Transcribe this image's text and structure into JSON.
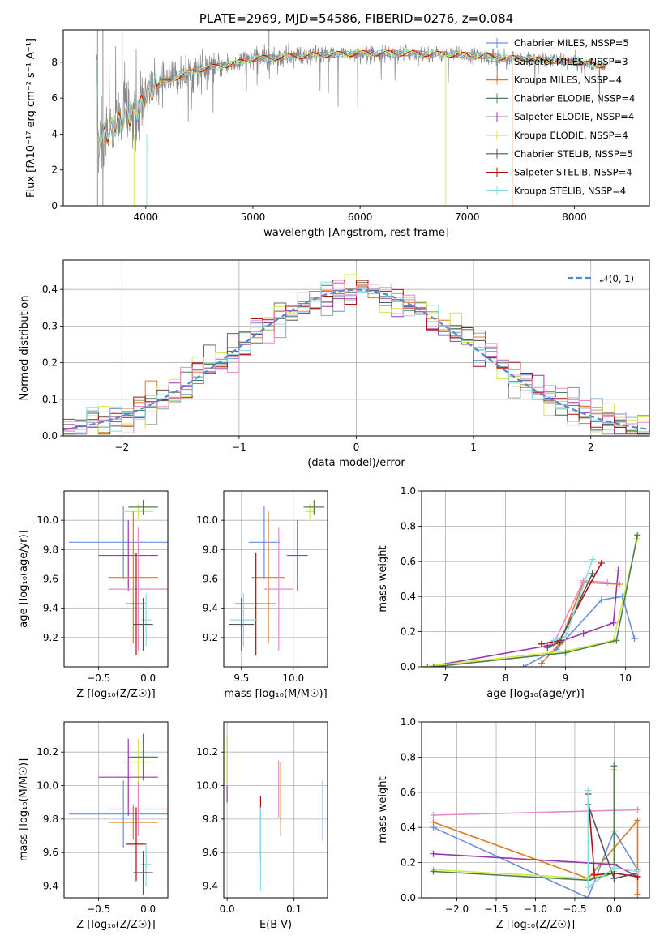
{
  "colors": {
    "chabrier_miles": "#6a8fdc",
    "salpeter_miles": "#a0a0a0",
    "kroupa_miles": "#e07a1f",
    "chabrier_elodie": "#4f7f4f",
    "salpeter_elodie": "#9b35b0",
    "kroupa_elodie": "#d6e64a",
    "chabrier_stelib": "#555555",
    "salpeter_stelib": "#b01010",
    "kroupa_stelib": "#87dde6",
    "pink": "#e68ac8",
    "spectrum": "#888888",
    "normal": "#5588cc"
  },
  "chart_data": [
    {
      "id": "spectrum",
      "type": "line",
      "title": "PLATE=2969, MJD=54586, FIBERID=0276, z=0.084",
      "xlabel": "wavelength [Angstrom, rest frame]",
      "ylabel": "Flux [fλ10⁻¹⁷ erg cm⁻² s⁻¹ A⁻¹]",
      "xlim": [
        3230,
        8700
      ],
      "ylim": [
        0,
        9.8
      ],
      "xticks": [
        "4000",
        "5000",
        "6000",
        "7000",
        "8000"
      ],
      "yticks": [
        "0",
        "2",
        "4",
        "6",
        "8"
      ],
      "legend_position": "right",
      "legend": [
        "Chabrier MILES, NSSP=5",
        "Salpeter MILES, NSSP=3",
        "Kroupa MILES, NSSP=4",
        "Chabrier ELODIE, NSSP=4",
        "Salpeter ELODIE, NSSP=4",
        "Kroupa ELODIE, NSSP=4",
        "Chabrier STELIB, NSSP=5",
        "Salpeter STELIB, NSSP=4",
        "Kroupa STELIB, NSSP=4"
      ],
      "continuum": [
        [
          3550,
          3.8
        ],
        [
          3650,
          4.1
        ],
        [
          3800,
          4.9
        ],
        [
          3950,
          5.4
        ],
        [
          4000,
          6.2
        ],
        [
          4100,
          6.7
        ],
        [
          4300,
          7.2
        ],
        [
          4500,
          7.6
        ],
        [
          4800,
          7.9
        ],
        [
          5000,
          8.2
        ],
        [
          5300,
          8.3
        ],
        [
          5600,
          8.4
        ],
        [
          6000,
          8.5
        ],
        [
          6500,
          8.5
        ],
        [
          7000,
          8.4
        ],
        [
          7500,
          8.2
        ],
        [
          8000,
          8.0
        ],
        [
          8300,
          7.8
        ]
      ]
    },
    {
      "id": "residuals",
      "type": "step",
      "xlabel": "(data-model)/error",
      "ylabel": "Normed distribution",
      "xlim": [
        -2.5,
        2.5
      ],
      "ylim": [
        0,
        0.48
      ],
      "xticks": [
        "−2",
        "−1",
        "0",
        "1",
        "2"
      ],
      "yticks": [
        "0.0",
        "0.1",
        "0.2",
        "0.3",
        "0.4"
      ],
      "grid": true,
      "legend": [
        "𝒩(0, 1)"
      ],
      "legend_position": "top-right"
    },
    {
      "id": "age_vs_Z",
      "type": "errorbar",
      "xlabel": "Z [log₁₀(Z/Z☉)]",
      "ylabel": "age [log₁₀(age/yr)]",
      "xlim": [
        -0.85,
        0.2
      ],
      "ylim": [
        9.0,
        10.2
      ],
      "xticks": [
        "−0.5",
        "0.0"
      ],
      "yticks": [
        "9.2",
        "9.4",
        "9.6",
        "9.8",
        "10.0"
      ],
      "grid": true,
      "points": [
        {
          "x": -0.25,
          "y": 9.85,
          "xerr": 0.55,
          "yerr": 0.25,
          "c": "chabrier_miles"
        },
        {
          "x": -0.1,
          "y": 10.06,
          "xerr": 0.15,
          "yerr": 0.05,
          "c": "kroupa_elodie"
        },
        {
          "x": -0.05,
          "y": 10.09,
          "xerr": 0.15,
          "yerr": 0.05,
          "c": "chabrier_elodie"
        },
        {
          "x": -0.2,
          "y": 9.76,
          "xerr": 0.3,
          "yerr": 0.24,
          "c": "salpeter_elodie"
        },
        {
          "x": -0.15,
          "y": 9.61,
          "xerr": 0.25,
          "yerr": 0.45,
          "c": "kroupa_miles"
        },
        {
          "x": -0.1,
          "y": 9.53,
          "xerr": 0.3,
          "yerr": 0.42,
          "c": "pink"
        },
        {
          "x": -0.12,
          "y": 9.43,
          "xerr": 0.1,
          "yerr": 0.35,
          "c": "salpeter_stelib"
        },
        {
          "x": -0.02,
          "y": 9.32,
          "xerr": 0.05,
          "yerr": 0.18,
          "c": "kroupa_stelib"
        },
        {
          "x": -0.05,
          "y": 9.29,
          "xerr": 0.1,
          "yerr": 0.18,
          "c": "chabrier_stelib"
        }
      ]
    },
    {
      "id": "age_vs_mass",
      "type": "errorbar",
      "xlabel": "mass [log₁₀(M/M☉)]",
      "ylabel": "",
      "xlim": [
        9.33,
        10.33
      ],
      "ylim": [
        9.0,
        10.2
      ],
      "xticks": [
        "9.5",
        "10.0"
      ],
      "yticks": [
        "9.2",
        "9.4",
        "9.6",
        "9.8",
        "10.0"
      ],
      "grid": true,
      "points": [
        {
          "x": 9.72,
          "y": 9.85,
          "xerr": 0.15,
          "yerr": 0.25,
          "c": "chabrier_miles"
        },
        {
          "x": 10.16,
          "y": 10.06,
          "xerr": 0.04,
          "yerr": 0.05,
          "c": "kroupa_elodie"
        },
        {
          "x": 10.2,
          "y": 10.09,
          "xerr": 0.1,
          "yerr": 0.05,
          "c": "chabrier_elodie"
        },
        {
          "x": 10.04,
          "y": 9.76,
          "xerr": 0.1,
          "yerr": 0.24,
          "c": "salpeter_elodie"
        },
        {
          "x": 9.76,
          "y": 9.61,
          "xerr": 0.16,
          "yerr": 0.45,
          "c": "kroupa_miles"
        },
        {
          "x": 9.86,
          "y": 9.53,
          "xerr": 0.14,
          "yerr": 0.42,
          "c": "pink"
        },
        {
          "x": 9.64,
          "y": 9.43,
          "xerr": 0.2,
          "yerr": 0.35,
          "c": "salpeter_stelib"
        },
        {
          "x": 9.52,
          "y": 9.32,
          "xerr": 0.13,
          "yerr": 0.18,
          "c": "kroupa_stelib"
        },
        {
          "x": 9.5,
          "y": 9.29,
          "xerr": 0.12,
          "yerr": 0.18,
          "c": "chabrier_stelib"
        }
      ]
    },
    {
      "id": "massweight_vs_age",
      "type": "line",
      "xlabel": "age  [log₁₀(age/yr)]",
      "ylabel": "mass weight",
      "xlim": [
        6.6,
        10.4
      ],
      "ylim": [
        0,
        1.0
      ],
      "xticks": [
        "7",
        "8",
        "9",
        "10"
      ],
      "yticks": [
        "0.0",
        "0.2",
        "0.4",
        "0.6",
        "0.8",
        "1.0"
      ],
      "grid": true,
      "series": [
        {
          "c": "chabrier_miles",
          "x": [
            8.3,
            8.85,
            9.6,
            9.95,
            10.15
          ],
          "y": [
            0.0,
            0.1,
            0.38,
            0.4,
            0.16
          ]
        },
        {
          "c": "salpeter_elodie",
          "x": [
            6.7,
            8.7,
            9.3,
            9.8,
            9.88
          ],
          "y": [
            0.0,
            0.12,
            0.19,
            0.25,
            0.55
          ]
        },
        {
          "c": "kroupa_miles",
          "x": [
            8.6,
            8.9,
            9.3,
            9.9
          ],
          "y": [
            0.02,
            0.13,
            0.48,
            0.47
          ]
        },
        {
          "c": "pink",
          "x": [
            8.8,
            9.3,
            9.7
          ],
          "y": [
            0.13,
            0.49,
            0.48
          ]
        },
        {
          "c": "salpeter_stelib",
          "x": [
            8.6,
            8.9,
            9.6
          ],
          "y": [
            0.13,
            0.15,
            0.59
          ]
        },
        {
          "c": "chabrier_stelib",
          "x": [
            8.7,
            8.9,
            9.45
          ],
          "y": [
            0.11,
            0.14,
            0.53
          ]
        },
        {
          "c": "kroupa_stelib",
          "x": [
            8.8,
            9.0,
            9.45
          ],
          "y": [
            0.15,
            0.17,
            0.61
          ]
        },
        {
          "c": "kroupa_elodie",
          "x": [
            6.6,
            9.0,
            9.8,
            10.2
          ],
          "y": [
            0.0,
            0.09,
            0.15,
            0.73
          ]
        },
        {
          "c": "chabrier_elodie",
          "x": [
            6.8,
            9.0,
            9.85,
            10.2
          ],
          "y": [
            0.0,
            0.08,
            0.15,
            0.75
          ]
        }
      ]
    },
    {
      "id": "mass_vs_Z",
      "type": "errorbar",
      "xlabel": "Z [log₁₀(Z/Z☉)]",
      "ylabel": "mass [log₁₀(M/M☉)]",
      "xlim": [
        -0.85,
        0.2
      ],
      "ylim": [
        9.33,
        10.38
      ],
      "xticks": [
        "−0.5",
        "0.0"
      ],
      "yticks": [
        "9.4",
        "9.6",
        "9.8",
        "10.0",
        "10.2"
      ],
      "grid": true,
      "points": [
        {
          "x": -0.25,
          "y": 9.83,
          "xerr": 0.55,
          "yerr": 0.2,
          "c": "chabrier_miles"
        },
        {
          "x": -0.1,
          "y": 10.14,
          "xerr": 0.15,
          "yerr": 0.14,
          "c": "kroupa_elodie"
        },
        {
          "x": -0.05,
          "y": 10.17,
          "xerr": 0.15,
          "yerr": 0.14,
          "c": "chabrier_elodie"
        },
        {
          "x": -0.2,
          "y": 10.05,
          "xerr": 0.3,
          "yerr": 0.23,
          "c": "salpeter_elodie"
        },
        {
          "x": -0.15,
          "y": 9.78,
          "xerr": 0.25,
          "yerr": 0.1,
          "c": "kroupa_miles"
        },
        {
          "x": -0.1,
          "y": 9.86,
          "xerr": 0.3,
          "yerr": 0.16,
          "c": "pink"
        },
        {
          "x": -0.12,
          "y": 9.65,
          "xerr": 0.1,
          "yerr": 0.22,
          "c": "salpeter_stelib"
        },
        {
          "x": -0.02,
          "y": 9.53,
          "xerr": 0.05,
          "yerr": 0.13,
          "c": "kroupa_stelib"
        },
        {
          "x": -0.05,
          "y": 9.48,
          "xerr": 0.1,
          "yerr": 0.13,
          "c": "chabrier_stelib"
        }
      ]
    },
    {
      "id": "mass_vs_EBV",
      "type": "errorbar",
      "xlabel": "E(B-V)",
      "ylabel": "",
      "xlim": [
        -0.005,
        0.15
      ],
      "ylim": [
        9.33,
        10.38
      ],
      "xticks": [
        "0.0",
        "0.1"
      ],
      "yticks": [
        "9.4",
        "9.6",
        "9.8",
        "10.0",
        "10.2"
      ],
      "grid": true,
      "points": [
        {
          "x": 0.0,
          "y": 10.1,
          "xerr": 0,
          "yerr": 0.2,
          "c": "salpeter_elodie"
        },
        {
          "x": 0.0,
          "y": 10.15,
          "xerr": 0,
          "yerr": 0.15,
          "c": "kroupa_elodie"
        },
        {
          "x": 0.05,
          "y": 9.75,
          "xerr": 0,
          "yerr": 0.19,
          "c": "salpeter_stelib"
        },
        {
          "x": 0.05,
          "y": 9.62,
          "xerr": 0,
          "yerr": 0.25,
          "c": "kroupa_stelib"
        },
        {
          "x": 0.08,
          "y": 9.92,
          "xerr": 0,
          "yerr": 0.22,
          "c": "kroupa_miles"
        },
        {
          "x": 0.077,
          "y": 9.98,
          "xerr": 0,
          "yerr": 0.17,
          "c": "pink"
        },
        {
          "x": 0.143,
          "y": 9.85,
          "xerr": 0,
          "yerr": 0.18,
          "c": "chabrier_miles"
        }
      ]
    },
    {
      "id": "massweight_vs_Z",
      "type": "line",
      "xlabel": "Z [log₁₀(Z/Z☉)]",
      "ylabel": "mass weight",
      "xlim": [
        -2.45,
        0.45
      ],
      "ylim": [
        0,
        1.0
      ],
      "xticks": [
        "−2.0",
        "−1.5",
        "−1.0",
        "−0.5",
        "0.0"
      ],
      "yticks": [
        "0.0",
        "0.2",
        "0.4",
        "0.6",
        "0.8",
        "1.0"
      ],
      "grid": true,
      "series": [
        {
          "c": "chabrier_miles",
          "x": [
            -2.3,
            -0.33,
            0.0,
            0.3
          ],
          "y": [
            0.4,
            0.0,
            0.38,
            0.16
          ]
        },
        {
          "c": "pink",
          "x": [
            -2.3,
            0.3
          ],
          "y": [
            0.47,
            0.5
          ]
        },
        {
          "c": "kroupa_miles",
          "x": [
            -2.3,
            -0.33,
            0.3,
            0.3
          ],
          "y": [
            0.43,
            0.11,
            0.44,
            0.02
          ]
        },
        {
          "c": "salpeter_elodie",
          "x": [
            -2.3,
            0.0,
            0.3
          ],
          "y": [
            0.25,
            0.19,
            0.12
          ]
        },
        {
          "c": "kroupa_elodie",
          "x": [
            -2.3,
            -0.33,
            0.0,
            0.0
          ],
          "y": [
            0.16,
            0.11,
            0.15,
            0.73
          ]
        },
        {
          "c": "chabrier_elodie",
          "x": [
            -2.3,
            -0.33,
            0.0,
            0.0
          ],
          "y": [
            0.15,
            0.1,
            0.14,
            0.75
          ]
        },
        {
          "c": "salpeter_stelib",
          "x": [
            -0.33,
            -0.25,
            0.0,
            0.3
          ],
          "y": [
            0.59,
            0.13,
            0.14,
            0.12
          ]
        },
        {
          "c": "chabrier_stelib",
          "x": [
            -0.33,
            0.0,
            0.3
          ],
          "y": [
            0.53,
            0.11,
            0.14
          ]
        },
        {
          "c": "kroupa_stelib",
          "x": [
            -0.33,
            -0.33,
            0.0,
            0.3
          ],
          "y": [
            0.61,
            0.06,
            0.17,
            0.15
          ]
        }
      ]
    }
  ]
}
